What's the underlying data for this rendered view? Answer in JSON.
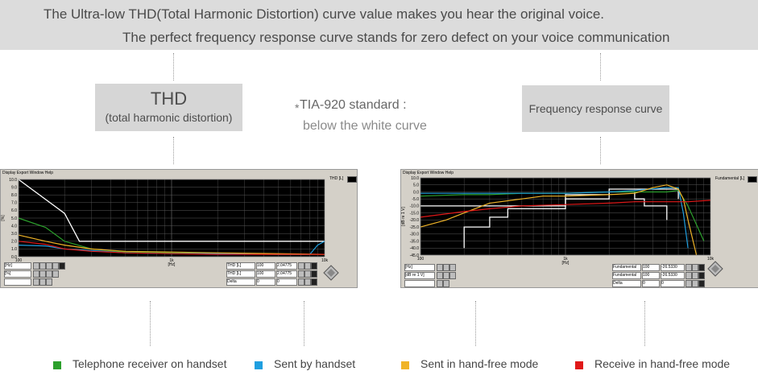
{
  "banner": {
    "line1": "The Ultra-low THD(Total Harmonic Distortion) curve value makes you hear the original voice.",
    "line2": "The perfect frequency response curve stands for zero defect on your voice communication"
  },
  "thd_box": {
    "title": "THD",
    "subtitle": "(total harmonic distortion)"
  },
  "fr_box": {
    "title": "Frequency response curve"
  },
  "standard_note": {
    "bullet": "*",
    "line1": "TIA-920 standard :",
    "line2": "below the white curve"
  },
  "colors": {
    "green": "#2ca02c",
    "blue": "#1f9fe0",
    "yellow": "#f0b428",
    "red": "#e01818",
    "white": "#ffffff",
    "plot_bg": "#000000",
    "grid": "#5a5a5a"
  },
  "legend": [
    {
      "label": "Telephone receiver on handset",
      "color": "#2ca02c"
    },
    {
      "label": "Sent by handset",
      "color": "#1f9fe0"
    },
    {
      "label": "Sent in hand-free mode",
      "color": "#f0b428"
    },
    {
      "label": "Receive in hand-free mode",
      "color": "#e01818"
    }
  ],
  "thd_window": {
    "menu": "Display Export Window Help",
    "tag": "THD [L]",
    "controls": {
      "left": [
        "[Hz]",
        "[%]"
      ],
      "right_rows": [
        {
          "label": "THD [L]",
          "freq": "100",
          "value": "2.04775"
        },
        {
          "label": "THD [L]",
          "freq": "100",
          "value": "2.04775"
        },
        {
          "label": "Delta",
          "freq": "0",
          "value": "0"
        }
      ]
    }
  },
  "fr_window": {
    "menu": "Display Export Window Help",
    "tag": "Fundamental [L]",
    "controls": {
      "left": [
        "[Hz]",
        "[dB re 1 V]"
      ],
      "right_rows": [
        {
          "label": "Fundamental",
          "freq": "100",
          "value": "-26.5330"
        },
        {
          "label": "Fundamental",
          "freq": "100",
          "value": "-26.5330"
        },
        {
          "label": "Delta",
          "freq": "0",
          "value": "0"
        }
      ]
    }
  },
  "chart_data": [
    {
      "type": "line",
      "title": "",
      "xlabel": "[Hz]",
      "ylabel": "[%]",
      "xscale": "log",
      "xlim": [
        100,
        10000
      ],
      "ylim": [
        0,
        10
      ],
      "x_ticks": [
        "100",
        "1k",
        "10k"
      ],
      "y_ticks": [
        "10.0",
        "9.0",
        "8.0",
        "7.0",
        "6.0",
        "5.0",
        "4.0",
        "3.0",
        "2.0",
        "1.0",
        "0.0"
      ],
      "grid": true,
      "series": [
        {
          "color": "#ffffff",
          "x": [
            100,
            200,
            250,
            10000
          ],
          "y": [
            10,
            5.6,
            2.0,
            2.0
          ]
        },
        {
          "color": "#2ca02c",
          "x": [
            100,
            150,
            200,
            300,
            500,
            1000,
            2000,
            5000,
            10000
          ],
          "y": [
            5.0,
            3.8,
            2.0,
            1.0,
            0.6,
            0.5,
            0.4,
            0.3,
            0.3
          ]
        },
        {
          "color": "#1f9fe0",
          "x": [
            100,
            150,
            200,
            300,
            500,
            1000,
            2000,
            5000,
            8000,
            9000,
            10000
          ],
          "y": [
            1.5,
            1.4,
            1.0,
            0.8,
            0.5,
            0.4,
            0.4,
            0.3,
            0.3,
            1.5,
            2.0
          ]
        },
        {
          "color": "#f0b428",
          "x": [
            100,
            150,
            200,
            300,
            500,
            1000,
            2000,
            5000,
            10000
          ],
          "y": [
            2.8,
            2.0,
            1.5,
            1.0,
            0.7,
            0.6,
            0.5,
            0.4,
            0.3
          ]
        },
        {
          "color": "#e01818",
          "x": [
            100,
            150,
            200,
            300,
            500,
            1000,
            2000,
            5000,
            10000
          ],
          "y": [
            2.0,
            1.6,
            1.0,
            0.7,
            0.5,
            0.4,
            0.3,
            0.3,
            0.3
          ]
        }
      ]
    },
    {
      "type": "line",
      "title": "",
      "xlabel": "[Hz]",
      "ylabel": "[dB re 1 V]",
      "xscale": "log",
      "xlim": [
        100,
        10000
      ],
      "ylim": [
        -45,
        10
      ],
      "x_ticks": [
        "100",
        "1k",
        "10k"
      ],
      "y_ticks": [
        "10.0",
        "5.0",
        "0.0",
        "-5.0",
        "-10.0",
        "-15.0",
        "-20.0",
        "-25.0",
        "-30.0",
        "-35.0",
        "-40.0",
        "-45.0"
      ],
      "grid": true,
      "series": [
        {
          "color": "#ffffff",
          "x": [
            200,
            200,
            300,
            300,
            400,
            400,
            1000,
            1000,
            2000,
            2000,
            3000,
            3000,
            3500,
            3500,
            5000,
            5000
          ],
          "y": [
            -40,
            -25,
            -25,
            -18,
            -18,
            -12,
            -12,
            -5,
            -5,
            0,
            0,
            -5,
            -5,
            -10,
            -10,
            -20
          ]
        },
        {
          "color": "#ffffff",
          "x": [
            100,
            1000,
            1000,
            2000,
            2000,
            6000,
            6000
          ],
          "y": [
            -10,
            -10,
            -2,
            -2,
            2,
            2,
            -5
          ]
        },
        {
          "color": "#2ca02c",
          "x": [
            100,
            200,
            300,
            500,
            1000,
            2000,
            3000,
            5000,
            6000,
            7000,
            9000
          ],
          "y": [
            -3,
            -2,
            -2,
            -1,
            -1,
            0,
            0,
            0,
            1,
            -10,
            -35
          ]
        },
        {
          "color": "#1f9fe0",
          "x": [
            100,
            200,
            500,
            1000,
            2000,
            3000,
            5000,
            6000,
            6500,
            7000
          ],
          "y": [
            -1,
            -1,
            -1,
            -1,
            0,
            1,
            3,
            3,
            -15,
            -40
          ]
        },
        {
          "color": "#f0b428",
          "x": [
            100,
            150,
            200,
            300,
            500,
            700,
            1000,
            2000,
            3000,
            4000,
            5000,
            6000,
            6500,
            7000,
            8000
          ],
          "y": [
            -25,
            -20,
            -15,
            -8,
            -5,
            -3,
            -3,
            -2,
            -1,
            3,
            5,
            2,
            -5,
            -20,
            -45
          ]
        },
        {
          "color": "#e01818",
          "x": [
            100,
            200,
            300,
            500,
            1000,
            2000,
            3000,
            5000,
            7000,
            10000
          ],
          "y": [
            -18,
            -14,
            -12,
            -10,
            -9,
            -8,
            -7,
            -7,
            -7,
            -6
          ]
        }
      ]
    }
  ]
}
